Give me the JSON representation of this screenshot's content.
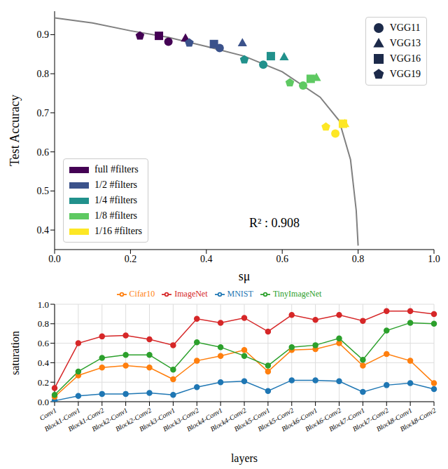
{
  "chart_data": [
    {
      "type": "scatter",
      "x_label": "sμ",
      "y_label": "Test Accuracy",
      "xlim": [
        0,
        1
      ],
      "ylim": [
        0.35,
        0.96
      ],
      "xticks": [
        {
          "value": 0,
          "label": "0.0"
        },
        0.2,
        0.4,
        0.6,
        0.8,
        {
          "value": 1,
          "label": "1.0"
        }
      ],
      "yticks": [
        0.4,
        0.5,
        0.6,
        0.7,
        0.8,
        0.9
      ],
      "grid": false,
      "legend": "lower-left",
      "annotation": "R² : 0.908",
      "models": [
        {
          "name": "VGG11",
          "marker": "circle"
        },
        {
          "name": "VGG13",
          "marker": "triangle"
        },
        {
          "name": "VGG16",
          "marker": "square"
        },
        {
          "name": "VGG19",
          "marker": "pentagon"
        }
      ],
      "fit": {
        "color": "#808080",
        "x": [
          0,
          0.1,
          0.2,
          0.3,
          0.4,
          0.5,
          0.6,
          0.7,
          0.75,
          0.78,
          0.795,
          0.8
        ],
        "y": [
          0.943,
          0.93,
          0.91,
          0.893,
          0.87,
          0.845,
          0.805,
          0.74,
          0.68,
          0.58,
          0.45,
          0.36
        ]
      },
      "series": [
        {
          "name": "full #filters",
          "color": "#440154",
          "points": [
            {
              "x": 0.3,
              "y": 0.882,
              "model": "VGG11"
            },
            {
              "x": 0.345,
              "y": 0.891,
              "model": "VGG13"
            },
            {
              "x": 0.275,
              "y": 0.897,
              "model": "VGG16"
            },
            {
              "x": 0.225,
              "y": 0.897,
              "model": "VGG19"
            }
          ]
        },
        {
          "name": "1/2 #filters",
          "color": "#3b528b",
          "points": [
            {
              "x": 0.435,
              "y": 0.866,
              "model": "VGG11"
            },
            {
              "x": 0.495,
              "y": 0.879,
              "model": "VGG13"
            },
            {
              "x": 0.42,
              "y": 0.876,
              "model": "VGG16"
            },
            {
              "x": 0.355,
              "y": 0.879,
              "model": "VGG19"
            }
          ]
        },
        {
          "name": "1/4 #filters",
          "color": "#21918c",
          "points": [
            {
              "x": 0.55,
              "y": 0.823,
              "model": "VGG11"
            },
            {
              "x": 0.605,
              "y": 0.843,
              "model": "VGG13"
            },
            {
              "x": 0.57,
              "y": 0.845,
              "model": "VGG16"
            },
            {
              "x": 0.5,
              "y": 0.836,
              "model": "VGG19"
            }
          ]
        },
        {
          "name": "1/8 #filters",
          "color": "#5ec962",
          "points": [
            {
              "x": 0.655,
              "y": 0.77,
              "model": "VGG11"
            },
            {
              "x": 0.69,
              "y": 0.79,
              "model": "VGG13"
            },
            {
              "x": 0.675,
              "y": 0.787,
              "model": "VGG16"
            },
            {
              "x": 0.62,
              "y": 0.777,
              "model": "VGG19"
            }
          ]
        },
        {
          "name": "1/16 #filters",
          "color": "#fde725",
          "points": [
            {
              "x": 0.74,
              "y": 0.647,
              "model": "VGG11"
            },
            {
              "x": 0.765,
              "y": 0.672,
              "model": "VGG13"
            },
            {
              "x": 0.76,
              "y": 0.672,
              "model": "VGG16"
            },
            {
              "x": 0.715,
              "y": 0.664,
              "model": "VGG19"
            }
          ]
        }
      ]
    },
    {
      "type": "line",
      "x_label": "layers",
      "y_label": "saturation",
      "ylim": [
        0,
        1
      ],
      "yticks": [
        {
          "value": 0,
          "label": "0.0"
        },
        0.2,
        0.4,
        0.6,
        0.8,
        {
          "value": 1,
          "label": "1.0"
        }
      ],
      "grid": true,
      "legend": "top",
      "marker": "circle",
      "categories": [
        "Conv1",
        "Block1-Conv1",
        "Block1-Conv2",
        "Block2-Conv1",
        "Block2-Conv2",
        "Block3-Conv1",
        "Block3-Conv2",
        "Block4-Conv1",
        "Block4-Conv2",
        "Block5-Conv1",
        "Block5-Conv2",
        "Block6-Conv1",
        "Block6-Conv2",
        "Block7-Conv1",
        "Block7-Conv2",
        "Block8-Conv1",
        "Block8-Conv2"
      ],
      "series": [
        {
          "name": "MNIST",
          "color": "#1f77b4",
          "values": [
            0.01,
            0.06,
            0.08,
            0.08,
            0.09,
            0.07,
            0.15,
            0.2,
            0.21,
            0.11,
            0.22,
            0.22,
            0.21,
            0.1,
            0.17,
            0.19,
            0.13
          ]
        },
        {
          "name": "Cifar10",
          "color": "#ff7f0e",
          "values": [
            0.05,
            0.27,
            0.35,
            0.37,
            0.35,
            0.23,
            0.42,
            0.47,
            0.53,
            0.31,
            0.53,
            0.54,
            0.6,
            0.37,
            0.49,
            0.42,
            0.19
          ]
        },
        {
          "name": "TinyImageNet",
          "color": "#2ca02c",
          "values": [
            0.07,
            0.31,
            0.45,
            0.48,
            0.48,
            0.33,
            0.61,
            0.56,
            0.47,
            0.37,
            0.56,
            0.58,
            0.65,
            0.43,
            0.73,
            0.81,
            0.8
          ]
        },
        {
          "name": "ImageNet",
          "color": "#d62728",
          "values": [
            0.14,
            0.6,
            0.67,
            0.68,
            0.64,
            0.58,
            0.85,
            0.81,
            0.86,
            0.72,
            0.89,
            0.84,
            0.89,
            0.83,
            0.93,
            0.93,
            0.9
          ]
        }
      ]
    }
  ]
}
